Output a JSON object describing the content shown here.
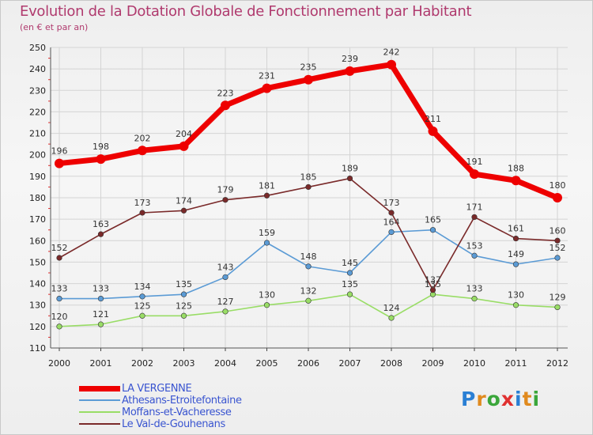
{
  "chart_data": {
    "type": "line",
    "title": "Evolution de la Dotation Globale de Fonctionnement par Habitant",
    "subtitle": "(en € et par an)",
    "xlabel": "",
    "ylabel": "",
    "x": [
      "2000",
      "2001",
      "2002",
      "2003",
      "2004",
      "2005",
      "2006",
      "2007",
      "2008",
      "2009",
      "2010",
      "2011",
      "2012"
    ],
    "ylim": [
      110,
      250
    ],
    "yticks": [
      "110",
      "120",
      "130",
      "140",
      "150",
      "160",
      "170",
      "180",
      "190",
      "200",
      "210",
      "220",
      "230",
      "240",
      "250"
    ],
    "grid": true,
    "legend_position": "bottom-left",
    "series": [
      {
        "name": "LA VERGENNE",
        "color": "#ee0000",
        "values": [
          196,
          198,
          202,
          204,
          223,
          231,
          235,
          239,
          242,
          211,
          191,
          188,
          180
        ]
      },
      {
        "name": "Athesans-Etroitefontaine",
        "color": "#5b9bd5",
        "values": [
          133,
          133,
          134,
          135,
          143,
          159,
          148,
          145,
          164,
          165,
          153,
          149,
          152
        ]
      },
      {
        "name": "Moffans-et-Vacheresse",
        "color": "#99dd66",
        "values": [
          120,
          121,
          125,
          125,
          127,
          130,
          132,
          135,
          124,
          135,
          133,
          130,
          129
        ]
      },
      {
        "name": "Le Val-de-Gouhenans",
        "color": "#7a2a2a",
        "values": [
          152,
          163,
          173,
          174,
          179,
          181,
          185,
          189,
          173,
          137,
          171,
          161,
          160
        ]
      }
    ]
  },
  "logo": {
    "letters": [
      "P",
      "r",
      "o",
      "x",
      "i",
      "t",
      "i"
    ],
    "colors": [
      "#2a7fd4",
      "#e08a1e",
      "#3aa63a",
      "#e03030",
      "#2a7fd4",
      "#e08a1e",
      "#3aa63a"
    ]
  }
}
